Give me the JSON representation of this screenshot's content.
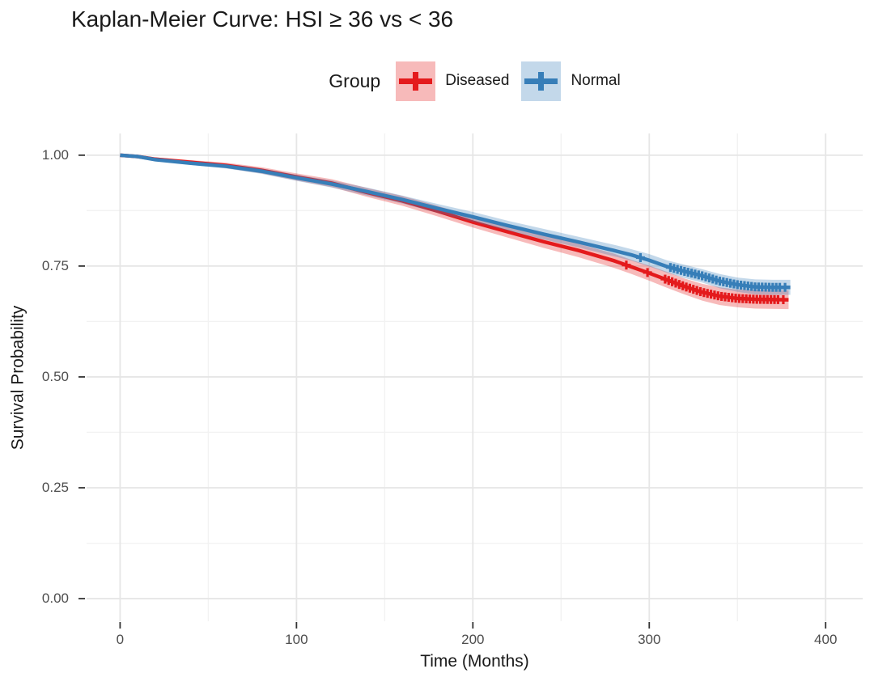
{
  "chart_data": {
    "type": "line",
    "subtype": "kaplan-meier",
    "title": "Kaplan-Meier Curve: HSI ≥ 36 vs < 36",
    "xlabel": "Time (Months)",
    "ylabel": "Survival Probability",
    "xlim": [
      -19,
      421
    ],
    "ylim": [
      -0.051,
      1.049
    ],
    "xticks": [
      0,
      100,
      200,
      300,
      400
    ],
    "xtick_labels": [
      "0",
      "100",
      "200",
      "300",
      "400"
    ],
    "yticks": [
      0.0,
      0.25,
      0.5,
      0.75,
      1.0
    ],
    "ytick_labels": [
      "0.00",
      "0.25",
      "0.50",
      "0.75",
      "1.00"
    ],
    "xminor": [
      50,
      150,
      250,
      350
    ],
    "yminor": [
      0.125,
      0.375,
      0.625,
      0.875
    ],
    "grid": true,
    "colors": {
      "grid_major": "#e6e6e6",
      "grid_minor": "#f2f2f2",
      "tick": "#333333",
      "diseased": "#E41A1C",
      "normal": "#377EB8"
    },
    "legend": {
      "title": "Group",
      "position": "top"
    },
    "series": [
      {
        "name": "Diseased",
        "color": "#E41A1C",
        "band_color": "rgba(228,26,28,0.30)",
        "points": [
          [
            0,
            1.0,
            0.001
          ],
          [
            10,
            0.997,
            0.003
          ],
          [
            20,
            0.991,
            0.004
          ],
          [
            40,
            0.984,
            0.005
          ],
          [
            60,
            0.977,
            0.006
          ],
          [
            80,
            0.966,
            0.007
          ],
          [
            100,
            0.951,
            0.008
          ],
          [
            120,
            0.937,
            0.009
          ],
          [
            140,
            0.916,
            0.01
          ],
          [
            160,
            0.897,
            0.011
          ],
          [
            180,
            0.874,
            0.012
          ],
          [
            200,
            0.849,
            0.012
          ],
          [
            220,
            0.827,
            0.013
          ],
          [
            240,
            0.805,
            0.014
          ],
          [
            260,
            0.785,
            0.015
          ],
          [
            280,
            0.762,
            0.016
          ],
          [
            290,
            0.748,
            0.016
          ],
          [
            300,
            0.734,
            0.017
          ],
          [
            310,
            0.719,
            0.018
          ],
          [
            320,
            0.704,
            0.018
          ],
          [
            330,
            0.691,
            0.019
          ],
          [
            340,
            0.682,
            0.02
          ],
          [
            350,
            0.677,
            0.02
          ],
          [
            360,
            0.675,
            0.021
          ],
          [
            379,
            0.674,
            0.021
          ]
        ],
        "censor_times": [
          287,
          299,
          376
        ],
        "censor_dense": {
          "start": 309,
          "end": 374,
          "step": 2
        }
      },
      {
        "name": "Normal",
        "color": "#377EB8",
        "band_color": "rgba(55,126,184,0.30)",
        "points": [
          [
            0,
            1.0,
            0.001
          ],
          [
            10,
            0.997,
            0.002
          ],
          [
            20,
            0.99,
            0.003
          ],
          [
            40,
            0.982,
            0.004
          ],
          [
            60,
            0.975,
            0.005
          ],
          [
            80,
            0.964,
            0.006
          ],
          [
            100,
            0.949,
            0.007
          ],
          [
            120,
            0.935,
            0.008
          ],
          [
            140,
            0.918,
            0.009
          ],
          [
            160,
            0.9,
            0.009
          ],
          [
            180,
            0.88,
            0.01
          ],
          [
            200,
            0.861,
            0.011
          ],
          [
            220,
            0.841,
            0.011
          ],
          [
            240,
            0.822,
            0.012
          ],
          [
            260,
            0.804,
            0.012
          ],
          [
            280,
            0.785,
            0.013
          ],
          [
            290,
            0.775,
            0.013
          ],
          [
            300,
            0.763,
            0.014
          ],
          [
            310,
            0.749,
            0.014
          ],
          [
            320,
            0.738,
            0.015
          ],
          [
            330,
            0.728,
            0.015
          ],
          [
            340,
            0.716,
            0.016
          ],
          [
            350,
            0.708,
            0.016
          ],
          [
            360,
            0.703,
            0.017
          ],
          [
            370,
            0.702,
            0.017
          ],
          [
            380,
            0.702,
            0.017
          ]
        ],
        "censor_times": [
          295,
          377
        ],
        "censor_dense": {
          "start": 312,
          "end": 375,
          "step": 2
        }
      }
    ]
  }
}
